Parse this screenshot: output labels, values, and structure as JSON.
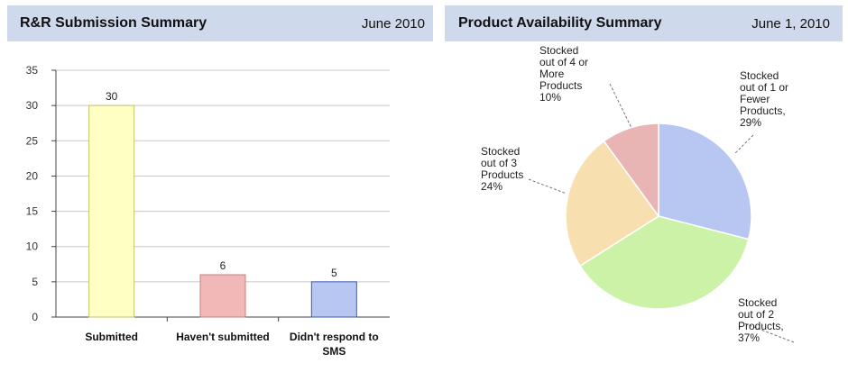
{
  "panels": {
    "left": {
      "title": "R&R Submission Summary",
      "date": "June 2010"
    },
    "right": {
      "title": "Product Availability Summary",
      "date": "June 1, 2010"
    }
  },
  "chart_data": [
    {
      "type": "bar",
      "title": "R&R Submission Summary",
      "categories": [
        [
          "Submitted"
        ],
        [
          "Haven't submitted"
        ],
        [
          "Didn't respond to",
          "SMS"
        ]
      ],
      "values": [
        30,
        6,
        5
      ],
      "colors": [
        "#ffffc4",
        "#f2b8b8",
        "#b8c6f2"
      ],
      "border_colors": [
        "#c4c466",
        "#c47f7f",
        "#3b5bb8"
      ],
      "ylim": [
        0,
        35
      ],
      "yticks": [
        0,
        5,
        10,
        15,
        20,
        25,
        30,
        35
      ],
      "grid": true
    },
    {
      "type": "pie",
      "title": "Product Availability Summary",
      "slices": [
        {
          "label": [
            "Stocked",
            "out of 1 or",
            "Fewer",
            "Products,",
            "29%"
          ],
          "value": 29,
          "color": "#b8c6f2"
        },
        {
          "label": [
            "Stocked",
            "out of 2",
            "Products,",
            "37%"
          ],
          "value": 37,
          "color": "#ccf2a8"
        },
        {
          "label": [
            "Stocked",
            "out of 3",
            "Products",
            "24%"
          ],
          "value": 24,
          "color": "#f7dfb0"
        },
        {
          "label": [
            "Stocked",
            "out of 4 or",
            "More",
            "Products",
            "10%"
          ],
          "value": 10,
          "color": "#e8b4b4"
        }
      ]
    }
  ]
}
